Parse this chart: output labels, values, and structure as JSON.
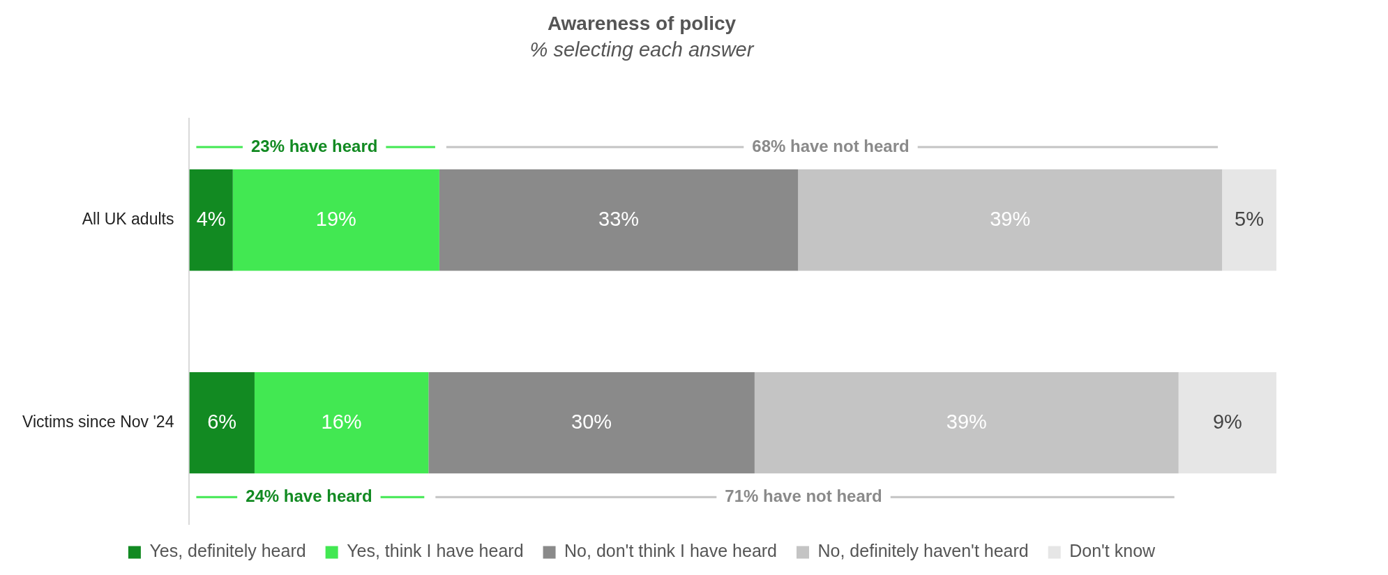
{
  "chart_data": {
    "type": "bar",
    "orientation": "horizontal",
    "stacked": true,
    "title": "Awareness of policy",
    "subtitle": "% selecting each answer",
    "categories": [
      "All UK adults",
      "Victims since Nov '24"
    ],
    "series": [
      {
        "name": "Yes, definitely heard",
        "color": "#128a22",
        "values": [
          4,
          6
        ],
        "value_labels": [
          "4%",
          "6%"
        ]
      },
      {
        "name": "Yes, think I have heard",
        "color": "#42e852",
        "values": [
          19,
          16
        ],
        "value_labels": [
          "19%",
          "16%"
        ]
      },
      {
        "name": "No, don't think I have heard",
        "color": "#8a8a8a",
        "values": [
          33,
          30
        ],
        "value_labels": [
          "33%",
          "30%"
        ]
      },
      {
        "name": "No, definitely haven't heard",
        "color": "#c4c4c4",
        "values": [
          39,
          39
        ],
        "value_labels": [
          "39%",
          "39%"
        ]
      },
      {
        "name": "Don't know",
        "color": "#e6e6e6",
        "values": [
          5,
          9
        ],
        "value_labels": [
          "5%",
          "9%"
        ]
      }
    ],
    "tick_labels": "y",
    "legend": "bottom",
    "grid": false,
    "annotations": [
      "23% have heard",
      "68% have not heard",
      "24% have heard",
      "71% have not heard"
    ]
  }
}
